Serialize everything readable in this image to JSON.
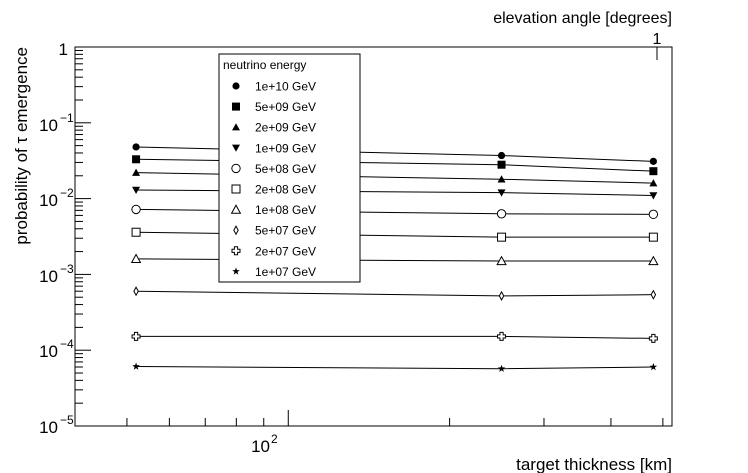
{
  "chart_data": {
    "type": "scatter",
    "title": "",
    "xlabel": "target thickness [km]",
    "ylabel": "probability of τ emergence",
    "top_axis_label": "elevation angle [degrees]",
    "top_axis_tick_label": "1",
    "x_scale": "log",
    "y_scale": "log",
    "xlim": [
      40,
      520
    ],
    "ylim": [
      1e-05,
      1
    ],
    "x_tick_labels": [
      "10^2"
    ],
    "y_tick_labels": [
      "1",
      "10^-1",
      "10^-2",
      "10^-3",
      "10^-4",
      "10^-5"
    ],
    "grid": false,
    "legend": {
      "title": "neutrino energy",
      "placement": "upper-left-center"
    },
    "x": [
      52,
      250,
      480
    ],
    "series": [
      {
        "name": "1e+10 GeV",
        "marker": "filled-circle",
        "values": [
          0.048,
          0.037,
          0.031
        ]
      },
      {
        "name": "5e+09 GeV",
        "marker": "filled-square",
        "values": [
          0.033,
          0.028,
          0.023
        ]
      },
      {
        "name": "2e+09 GeV",
        "marker": "filled-triangle-up",
        "values": [
          0.022,
          0.018,
          0.016
        ]
      },
      {
        "name": "1e+09 GeV",
        "marker": "filled-triangle-down",
        "values": [
          0.013,
          0.012,
          0.011
        ]
      },
      {
        "name": "5e+08 GeV",
        "marker": "open-circle",
        "values": [
          0.0072,
          0.0063,
          0.0062
        ]
      },
      {
        "name": "2e+08 GeV",
        "marker": "open-square",
        "values": [
          0.0036,
          0.0031,
          0.0031
        ]
      },
      {
        "name": "1e+08 GeV",
        "marker": "open-triangle-up",
        "values": [
          0.0016,
          0.0015,
          0.0015
        ]
      },
      {
        "name": "5e+07 GeV",
        "marker": "open-diamond",
        "values": [
          0.0006,
          0.00052,
          0.00054
        ]
      },
      {
        "name": "2e+07 GeV",
        "marker": "open-cross",
        "values": [
          0.000152,
          0.000152,
          0.000143
        ]
      },
      {
        "name": "1e+07 GeV",
        "marker": "star",
        "values": [
          6.1e-05,
          5.7e-05,
          6e-05
        ]
      }
    ]
  }
}
